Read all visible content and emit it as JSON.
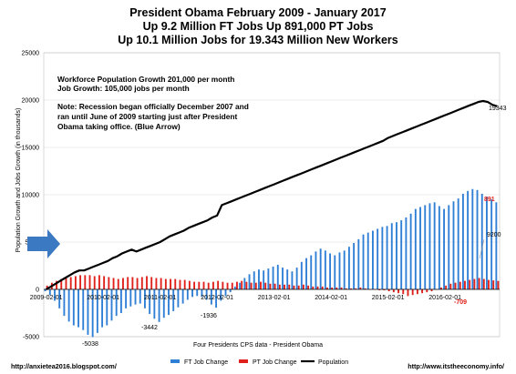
{
  "chart_data": {
    "type": "bar",
    "title_lines": [
      "President Obama February 2009 - January 2017",
      "Up 9.2 Million FT Jobs Up 891,000 PT Jobs",
      "Up 10.1 Million Jobs for 19.343 Million New Workers"
    ],
    "ylabel": "Population Growth and Jobs Growth (in thousands)",
    "xlabel": "Four Presidents CPS data - President Obama",
    "ylim": [
      -5000,
      25000
    ],
    "y_ticks": [
      "-5000",
      "0",
      "5000",
      "10000",
      "15000",
      "20000",
      "25000"
    ],
    "x_ticks": [
      "2009-02-01",
      "2010-02-01",
      "2011-02-01",
      "2012-02-01",
      "2013-02-01",
      "2014-02-01",
      "2015-02-01",
      "2016-02-01"
    ],
    "months": 96,
    "notes": [
      "Workforce Population Growth  201,000 per month",
      "Job Growth:  105,000 jobs per month",
      "",
      "Note: Recession began officially December 2007 and",
      "ran until June of 2009 starting just after President",
      "Obama taking office. (Blue Arrow)"
    ],
    "annotations": {
      "ft_min": "-5038",
      "ft_dip": "-3442",
      "ft_dip2": "-1936",
      "pt_min": "-709",
      "population_end": "19343",
      "pt_end": "891",
      "ft_end": "9200"
    },
    "legend": [
      "FT Job Change",
      "PT Job Change",
      "Population"
    ],
    "series": [
      {
        "name": "FT Job Change",
        "color": "#2f7fd6",
        "values": [
          -200,
          -600,
          -1200,
          -2000,
          -2800,
          -3400,
          -3800,
          -4000,
          -4300,
          -4800,
          -5038,
          -4600,
          -4000,
          -3800,
          -3300,
          -2800,
          -2500,
          -2000,
          -1800,
          -1600,
          -1500,
          -2000,
          -2600,
          -3100,
          -3442,
          -3000,
          -2700,
          -2300,
          -1900,
          -1500,
          -1100,
          -800,
          -700,
          -800,
          -1100,
          -1600,
          -1936,
          -1200,
          -700,
          -300,
          300,
          700,
          1200,
          1600,
          1900,
          2100,
          2000,
          2200,
          2400,
          2600,
          2300,
          2100,
          1900,
          2300,
          2900,
          3300,
          3600,
          4000,
          4300,
          4100,
          3800,
          3600,
          3900,
          4100,
          4500,
          4900,
          5300,
          5800,
          6000,
          6200,
          6400,
          6600,
          6700,
          7000,
          7100,
          7300,
          7600,
          8000,
          8500,
          8700,
          8900,
          9100,
          9200,
          8800,
          8500,
          8900,
          9300,
          9600,
          10100,
          10400,
          10600,
          10500,
          10100,
          9800,
          9500,
          9200
        ]
      },
      {
        "name": "PT Job Change",
        "color": "#e0201b",
        "values": [
          400,
          700,
          900,
          1100,
          1300,
          1300,
          1400,
          1500,
          1500,
          1500,
          1400,
          1500,
          1400,
          1300,
          1200,
          1100,
          1200,
          1300,
          1300,
          1200,
          1300,
          1400,
          1300,
          1200,
          1200,
          1100,
          1100,
          1100,
          1000,
          1000,
          900,
          800,
          800,
          800,
          700,
          800,
          900,
          800,
          700,
          700,
          800,
          900,
          800,
          700,
          700,
          800,
          700,
          600,
          600,
          500,
          500,
          500,
          400,
          400,
          500,
          400,
          300,
          300,
          300,
          200,
          200,
          200,
          200,
          100,
          100,
          100,
          200,
          100,
          0,
          0,
          -100,
          -100,
          -200,
          -300,
          -400,
          -500,
          -709,
          -600,
          -500,
          -400,
          -300,
          -200,
          0,
          200,
          400,
          600,
          700,
          800,
          900,
          1000,
          1100,
          1200,
          1100,
          1000,
          950,
          891
        ]
      },
      {
        "name": "Population",
        "color": "#000000",
        "values": [
          0,
          300,
          600,
          900,
          1200,
          1500,
          1800,
          2000,
          2000,
          2200,
          2400,
          2600,
          2800,
          3000,
          3300,
          3500,
          3800,
          4000,
          4200,
          4000,
          4200,
          4400,
          4600,
          4800,
          5000,
          5300,
          5600,
          5800,
          6000,
          6200,
          6500,
          6700,
          6900,
          7100,
          7300,
          7600,
          7800,
          8900,
          9100,
          9300,
          9500,
          9700,
          9900,
          10100,
          10300,
          10500,
          10700,
          10900,
          11100,
          11300,
          11500,
          11700,
          11900,
          12100,
          12300,
          12500,
          12700,
          12900,
          13100,
          13300,
          13500,
          13700,
          13900,
          14100,
          14300,
          14500,
          14700,
          14900,
          15100,
          15300,
          15500,
          15700,
          16000,
          16200,
          16400,
          16600,
          16800,
          17000,
          17200,
          17400,
          17600,
          17800,
          18000,
          18200,
          18400,
          18600,
          18800,
          19000,
          19200,
          19400,
          19600,
          19800,
          19900,
          19800,
          19500,
          19343
        ]
      }
    ]
  },
  "footer": {
    "left_url": "http://anxietea2016.blogspot.com/",
    "right_url": "http://www.itstheeconomy.info/"
  },
  "colors": {
    "arrow": "#3b79c3",
    "grid": "#d9d9d9"
  }
}
